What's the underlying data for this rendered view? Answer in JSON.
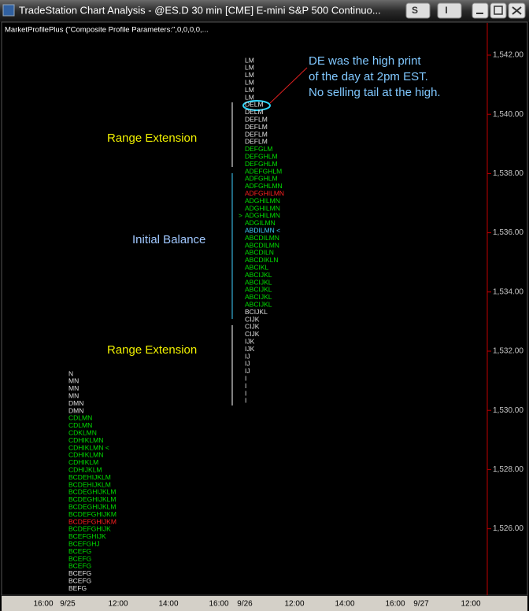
{
  "window": {
    "title": "TradeStation Chart Analysis - @ES.D  30 min  [CME] E-mini S&P 500 Continuo...",
    "buttons": [
      "S",
      "I"
    ]
  },
  "indicator_label": "MarketProfilePlus (\"Composite Profile Parameters:\",0,0,0,0,...",
  "price_axis": [
    "1,542.00",
    "1,540.00",
    "1,538.00",
    "1,536.00",
    "1,534.00",
    "1,532.00",
    "1,530.00",
    "1,528.00",
    "1,526.00"
  ],
  "time_axis": [
    "16:00",
    "9/25",
    "12:00",
    "14:00",
    "16:00",
    "9/26",
    "12:00",
    "14:00",
    "16:00",
    "9/27",
    "12:00"
  ],
  "annotations": {
    "range_extension_top": "Range Extension",
    "initial_balance": "Initial Balance",
    "range_extension_bottom": "Range Extension",
    "note": [
      "DE was the high print",
      "of the day at 2pm EST.",
      "No selling tail at the high."
    ]
  },
  "profiles": [
    {
      "rows": [
        {
          "text": "N",
          "color": "#e0e0e0"
        },
        {
          "text": "MN",
          "color": "#e0e0e0"
        },
        {
          "text": "MN",
          "color": "#e0e0e0"
        },
        {
          "text": "MN",
          "color": "#e0e0e0"
        },
        {
          "text": "DMN",
          "color": "#e0e0e0"
        },
        {
          "text": "DMN",
          "color": "#e0e0e0"
        },
        {
          "text": "CDLMN",
          "color": "#00e000"
        },
        {
          "text": "CDLMN",
          "color": "#00e000"
        },
        {
          "text": "CDKLMN",
          "color": "#00e000"
        },
        {
          "text": "CDHIKLMN",
          "color": "#00e000"
        },
        {
          "text": "CDHIKLMN <",
          "color": "#00e000"
        },
        {
          "text": "CDHIKLMN",
          "color": "#00e000"
        },
        {
          "text": "CDHIKLM",
          "color": "#00e000"
        },
        {
          "text": "CDHIJKLM",
          "color": "#00e000"
        },
        {
          "text": "BCDEHIJKLM",
          "color": "#00e000"
        },
        {
          "text": "BCDEHIJKLM",
          "color": "#00e000"
        },
        {
          "text": "BCDEGHIJKLM",
          "color": "#00e000"
        },
        {
          "text": "BCDEGHIJKLM",
          "color": "#00e000"
        },
        {
          "text": "BCDEGHIJKLM",
          "color": "#00e000"
        },
        {
          "text": "BCDEFGHIJKM",
          "color": "#00e000"
        },
        {
          "text": "BCDEFGHIJKM",
          "color": "#ff2020"
        },
        {
          "text": "BCDEFGHIJK",
          "color": "#00e000"
        },
        {
          "text": "BCEFGHIJK",
          "color": "#00e000"
        },
        {
          "text": "BCEFGHJ",
          "color": "#00e000"
        },
        {
          "text": "BCEFG",
          "color": "#00e000"
        },
        {
          "text": "BCEFG",
          "color": "#00e000"
        },
        {
          "text": "BCEFG",
          "color": "#00e000"
        },
        {
          "text": "BCEFG",
          "color": "#e0e0e0"
        },
        {
          "text": "BCEFG",
          "color": "#e0e0e0"
        },
        {
          "text": "BEFG",
          "color": "#e0e0e0"
        }
      ]
    },
    {
      "rows": [
        {
          "text": "LM",
          "color": "#e0e0e0"
        },
        {
          "text": "LM",
          "color": "#e0e0e0"
        },
        {
          "text": "LM",
          "color": "#e0e0e0"
        },
        {
          "text": "LM",
          "color": "#e0e0e0"
        },
        {
          "text": "LM",
          "color": "#e0e0e0"
        },
        {
          "text": "LM",
          "color": "#e0e0e0"
        },
        {
          "text": "DELM",
          "color": "#e0e0e0"
        },
        {
          "text": "DELM",
          "color": "#e0e0e0"
        },
        {
          "text": "DEFLM",
          "color": "#e0e0e0"
        },
        {
          "text": "DEFLM",
          "color": "#e0e0e0"
        },
        {
          "text": "DEFLM",
          "color": "#e0e0e0"
        },
        {
          "text": "DEFLM",
          "color": "#e0e0e0"
        },
        {
          "text": "DEFGLM",
          "color": "#00e000"
        },
        {
          "text": "DEFGHLM",
          "color": "#00e000"
        },
        {
          "text": "DEFGHLM",
          "color": "#00e000"
        },
        {
          "text": "ADEFGHLM",
          "color": "#00e000"
        },
        {
          "text": "ADFGHLM",
          "color": "#00e000"
        },
        {
          "text": "ADFGHLMN",
          "color": "#00e000"
        },
        {
          "text": "ADFGHILMN",
          "color": "#ff2020"
        },
        {
          "text": "ADGHILMN",
          "color": "#00e000"
        },
        {
          "text": "ADGHILMN",
          "color": "#00e000"
        },
        {
          "text": "ADGHILMN",
          "color": "#00e000",
          "marker": ">"
        },
        {
          "text": "ADGILMN",
          "color": "#00e000"
        },
        {
          "text": "ABDILMN <",
          "color": "#40d0ff"
        },
        {
          "text": "ABCDILMN",
          "color": "#00e000"
        },
        {
          "text": "ABCDILMN",
          "color": "#00e000"
        },
        {
          "text": "ABCDILN",
          "color": "#00e000"
        },
        {
          "text": "ABCDIKLN",
          "color": "#00e000"
        },
        {
          "text": "ABCIKL",
          "color": "#00e000"
        },
        {
          "text": "ABCIJKL",
          "color": "#00e000"
        },
        {
          "text": "ABCIJKL",
          "color": "#00e000"
        },
        {
          "text": "ABCIJKL",
          "color": "#00e000"
        },
        {
          "text": "ABCIJKL",
          "color": "#00e000"
        },
        {
          "text": "ABCIJKL",
          "color": "#00e000"
        },
        {
          "text": "BCIJKL",
          "color": "#e0e0e0"
        },
        {
          "text": "CIJK",
          "color": "#e0e0e0"
        },
        {
          "text": "CIJK",
          "color": "#e0e0e0"
        },
        {
          "text": "CIJK",
          "color": "#e0e0e0"
        },
        {
          "text": "IJK",
          "color": "#e0e0e0"
        },
        {
          "text": "IJK",
          "color": "#e0e0e0"
        },
        {
          "text": "IJ",
          "color": "#e0e0e0"
        },
        {
          "text": "IJ",
          "color": "#e0e0e0"
        },
        {
          "text": "IJ",
          "color": "#e0e0e0"
        },
        {
          "text": "I",
          "color": "#e0e0e0"
        },
        {
          "text": "I",
          "color": "#e0e0e0"
        },
        {
          "text": "I",
          "color": "#e0e0e0"
        },
        {
          "text": "I",
          "color": "#e0e0e0"
        }
      ]
    }
  ]
}
